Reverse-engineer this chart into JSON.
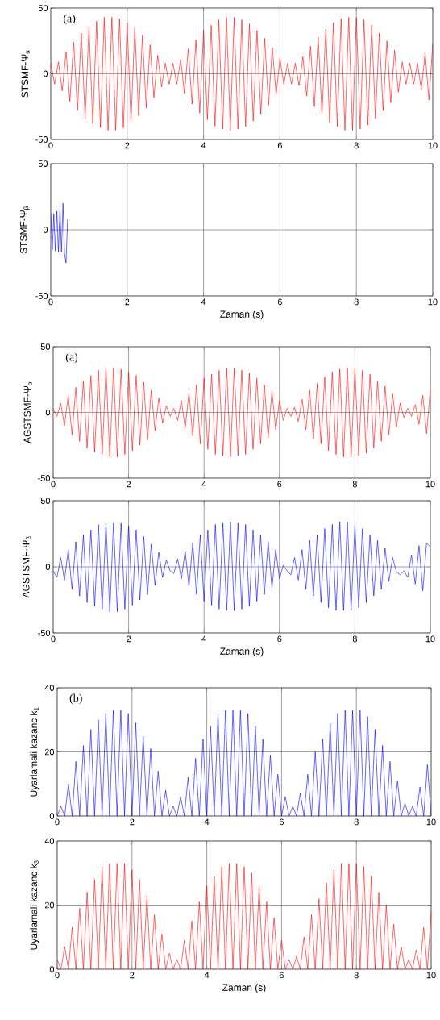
{
  "chart_data": [
    {
      "type": "line",
      "ylabel": "STSMF-Ψ$_{α}$",
      "annotations": [
        "(a)"
      ],
      "xlim": [
        0,
        10
      ],
      "ylim": [
        -50,
        50
      ],
      "xticks": [
        0,
        2,
        4,
        6,
        8,
        10
      ],
      "yticks": [
        -50,
        0,
        50
      ],
      "grid": true,
      "x": [
        0,
        0.1,
        0.2,
        0.3,
        0.4,
        0.5,
        0.6,
        0.7,
        0.8,
        0.9,
        1,
        1.1,
        1.2,
        1.3,
        1.4,
        1.5,
        1.6,
        1.7,
        1.8,
        1.9,
        2,
        2.1,
        2.2,
        2.3,
        2.4,
        2.5,
        2.6,
        2.7,
        2.8,
        2.9,
        3,
        3.1,
        3.2,
        3.3,
        3.4,
        3.5,
        3.6,
        3.7,
        3.8,
        3.9,
        4,
        4.1,
        4.2,
        4.3,
        4.4,
        4.5,
        4.6,
        4.7,
        4.8,
        4.9,
        5,
        5.1,
        5.2,
        5.3,
        5.4,
        5.5,
        5.6,
        5.7,
        5.8,
        5.9,
        6,
        6.1,
        6.2,
        6.3,
        6.4,
        6.5,
        6.6,
        6.7,
        6.8,
        6.9,
        7,
        7.1,
        7.2,
        7.3,
        7.4,
        7.5,
        7.6,
        7.7,
        7.8,
        7.9,
        8,
        8.1,
        8.2,
        8.3,
        8.4,
        8.5,
        8.6,
        8.7,
        8.8,
        8.9,
        9,
        9.1,
        9.2,
        9.3,
        9.4,
        9.5,
        9.6,
        9.7,
        9.8,
        9.9,
        10
      ],
      "series": [
        {
          "color": "#ff0000",
          "values": [
            8,
            -8,
            9,
            -13,
            17,
            -21,
            24,
            -28,
            31,
            -34,
            36,
            -38,
            40,
            -41,
            43,
            -43,
            43,
            -43,
            42,
            -41,
            39,
            -37,
            35,
            -32,
            29,
            -26,
            22,
            -18,
            14,
            -10,
            8,
            -8,
            8,
            -8,
            11,
            -15,
            19,
            -23,
            26,
            -30,
            33,
            -35,
            37,
            -40,
            41,
            -42,
            43,
            -43,
            43,
            -42,
            41,
            -40,
            38,
            -36,
            33,
            -31,
            27,
            -24,
            20,
            -16,
            12,
            -8,
            8,
            -8,
            8,
            -9,
            13,
            -17,
            21,
            -25,
            28,
            -31,
            34,
            -37,
            39,
            -40,
            42,
            -43,
            43,
            -43,
            43,
            -42,
            41,
            -39,
            37,
            -34,
            31,
            -28,
            25,
            -22,
            18,
            -14,
            9,
            -8,
            8,
            -8,
            8,
            -12,
            16,
            -20,
            23
          ]
        }
      ]
    },
    {
      "type": "line",
      "xlabel": "Zaman (s)",
      "ylabel": "STSMF-Ψ$_{β}$",
      "xlim": [
        0,
        10
      ],
      "ylim": [
        -50,
        50
      ],
      "xticks": [
        0,
        2,
        4,
        6,
        8,
        10
      ],
      "yticks": [
        -50,
        0,
        50
      ],
      "grid": true,
      "x": [
        0,
        0.04,
        0.08,
        0.12,
        0.16,
        0.2,
        0.24,
        0.28,
        0.32,
        0.36,
        0.4,
        0.44
      ],
      "series": [
        {
          "color": "#0000ff",
          "values": [
            13,
            -15,
            12,
            -16,
            14,
            -17,
            16,
            -17,
            20,
            -18,
            -25,
            8
          ]
        }
      ]
    },
    {
      "type": "line",
      "ylabel": "AGSTSMF-Ψ$_{α}$",
      "annotations": [
        "(a)"
      ],
      "xlim": [
        0,
        10
      ],
      "ylim": [
        -50,
        50
      ],
      "xticks": [
        0,
        2,
        4,
        6,
        8,
        10
      ],
      "yticks": [
        -50,
        0,
        50
      ],
      "grid": true,
      "x": [
        0,
        0.1,
        0.2,
        0.3,
        0.4,
        0.5,
        0.6,
        0.7,
        0.8,
        0.9,
        1,
        1.1,
        1.2,
        1.3,
        1.4,
        1.5,
        1.6,
        1.7,
        1.8,
        1.9,
        2,
        2.1,
        2.2,
        2.3,
        2.4,
        2.5,
        2.6,
        2.7,
        2.8,
        2.9,
        3,
        3.1,
        3.2,
        3.3,
        3.4,
        3.5,
        3.6,
        3.7,
        3.8,
        3.9,
        4,
        4.1,
        4.2,
        4.3,
        4.4,
        4.5,
        4.6,
        4.7,
        4.8,
        4.9,
        5,
        5.1,
        5.2,
        5.3,
        5.4,
        5.5,
        5.6,
        5.7,
        5.8,
        5.9,
        6,
        6.1,
        6.2,
        6.3,
        6.4,
        6.5,
        6.6,
        6.7,
        6.8,
        6.9,
        7,
        7.1,
        7.2,
        7.3,
        7.4,
        7.5,
        7.6,
        7.7,
        7.8,
        7.9,
        8,
        8.1,
        8.2,
        8.3,
        8.4,
        8.5,
        8.6,
        8.7,
        8.8,
        8.9,
        9,
        9.1,
        9.2,
        9.3,
        9.4,
        9.5,
        9.6,
        9.7,
        9.8,
        9.9,
        10
      ],
      "series": [
        {
          "color": "#ff0000",
          "values": [
            3,
            -3,
            7,
            -10,
            13,
            -17,
            19,
            -22,
            24,
            -27,
            28,
            -30,
            32,
            -32,
            34,
            -34,
            34,
            -34,
            33,
            -32,
            31,
            -29,
            28,
            -25,
            23,
            -21,
            17,
            -14,
            11,
            -8,
            5,
            -3,
            3,
            -6,
            9,
            -12,
            15,
            -18,
            21,
            -24,
            26,
            -28,
            29,
            -32,
            32,
            -33,
            34,
            -34,
            34,
            -33,
            32,
            -32,
            30,
            -28,
            26,
            -24,
            21,
            -19,
            16,
            -13,
            9,
            -6,
            3,
            -3,
            4,
            -7,
            10,
            -13,
            17,
            -20,
            22,
            -24,
            27,
            -29,
            31,
            -32,
            33,
            -34,
            34,
            -34,
            34,
            -33,
            32,
            -31,
            29,
            -27,
            24,
            -22,
            20,
            -17,
            14,
            -11,
            7,
            -4,
            3,
            -3,
            6,
            -9,
            13,
            -16,
            18
          ]
        }
      ]
    },
    {
      "type": "line",
      "xlabel": "Zaman (s)",
      "ylabel": "AGSTSMF-Ψ$_{β}$",
      "xlim": [
        0,
        10
      ],
      "ylim": [
        -50,
        50
      ],
      "xticks": [
        0,
        2,
        4,
        6,
        8,
        10
      ],
      "yticks": [
        -50,
        0,
        50
      ],
      "grid": true,
      "x": [
        0,
        0.1,
        0.2,
        0.3,
        0.4,
        0.5,
        0.6,
        0.7,
        0.8,
        0.9,
        1,
        1.1,
        1.2,
        1.3,
        1.4,
        1.5,
        1.6,
        1.7,
        1.8,
        1.9,
        2,
        2.1,
        2.2,
        2.3,
        2.4,
        2.5,
        2.6,
        2.7,
        2.8,
        2.9,
        3,
        3.1,
        3.2,
        3.3,
        3.4,
        3.5,
        3.6,
        3.7,
        3.8,
        3.9,
        4,
        4.1,
        4.2,
        4.3,
        4.4,
        4.5,
        4.6,
        4.7,
        4.8,
        4.9,
        5,
        5.1,
        5.2,
        5.3,
        5.4,
        5.5,
        5.6,
        5.7,
        5.8,
        5.9,
        6,
        6.1,
        6.2,
        6.3,
        6.4,
        6.5,
        6.6,
        6.7,
        6.8,
        6.9,
        7,
        7.1,
        7.2,
        7.3,
        7.4,
        7.5,
        7.6,
        7.7,
        7.8,
        7.9,
        8,
        8.1,
        8.2,
        8.3,
        8.4,
        8.5,
        8.6,
        8.7,
        8.8,
        8.9,
        9,
        9.1,
        9.2,
        9.3,
        9.4,
        9.5,
        9.6,
        9.7,
        9.8,
        9.9,
        10
      ],
      "series": [
        {
          "color": "#0000ff",
          "values": [
            -3,
            -8,
            7,
            -10,
            13,
            -17,
            19,
            -22,
            24,
            -27,
            28,
            -30,
            32,
            -32,
            33,
            -34,
            33,
            -34,
            33,
            -32,
            31,
            -29,
            28,
            -25,
            23,
            -21,
            17,
            -14,
            11,
            -8,
            5,
            -3,
            -5,
            6,
            -9,
            12,
            -15,
            18,
            -21,
            24,
            -26,
            28,
            -29,
            32,
            -32,
            33,
            -33,
            34,
            -33,
            33,
            -32,
            32,
            -30,
            28,
            -26,
            24,
            -21,
            19,
            -16,
            13,
            -9,
            1,
            -3,
            -6,
            7,
            -10,
            13,
            -17,
            20,
            -22,
            24,
            -27,
            29,
            -31,
            32,
            -33,
            34,
            -33,
            34,
            -33,
            32,
            -31,
            29,
            -27,
            24,
            -22,
            20,
            -17,
            14,
            -11,
            7,
            -4,
            -6,
            -3,
            -8,
            9,
            -13,
            16,
            -18,
            18,
            15
          ]
        }
      ]
    },
    {
      "type": "line",
      "ylabel": "Uyarlamali kazanc k$_{1}$",
      "annotations": [
        "(b)"
      ],
      "xlim": [
        0,
        10
      ],
      "ylim": [
        0,
        40
      ],
      "xticks": [
        0,
        2,
        4,
        6,
        8,
        10
      ],
      "yticks": [
        0,
        20,
        40
      ],
      "grid": true,
      "x": [
        0,
        0.1,
        0.2,
        0.3,
        0.4,
        0.5,
        0.6,
        0.7,
        0.8,
        0.9,
        1,
        1.1,
        1.2,
        1.3,
        1.4,
        1.5,
        1.6,
        1.7,
        1.8,
        1.9,
        2,
        2.1,
        2.2,
        2.3,
        2.4,
        2.5,
        2.6,
        2.7,
        2.8,
        2.9,
        3,
        3.1,
        3.2,
        3.3,
        3.4,
        3.5,
        3.6,
        3.7,
        3.8,
        3.9,
        4,
        4.1,
        4.2,
        4.3,
        4.4,
        4.5,
        4.6,
        4.7,
        4.8,
        4.9,
        5,
        5.1,
        5.2,
        5.3,
        5.4,
        5.5,
        5.6,
        5.7,
        5.8,
        5.9,
        6,
        6.1,
        6.2,
        6.3,
        6.4,
        6.5,
        6.6,
        6.7,
        6.8,
        6.9,
        7,
        7.1,
        7.2,
        7.3,
        7.4,
        7.5,
        7.6,
        7.7,
        7.8,
        7.9,
        8,
        8.1,
        8.2,
        8.3,
        8.4,
        8.5,
        8.6,
        8.7,
        8.8,
        8.9,
        9,
        9.1,
        9.2,
        9.3,
        9.4,
        9.5,
        9.6,
        9.7,
        9.8,
        9.9,
        10
      ],
      "series": [
        {
          "color": "#0000ff",
          "values": [
            0,
            3,
            0,
            10,
            0,
            17,
            0,
            22,
            0,
            27,
            0,
            30,
            0,
            32,
            0,
            33,
            0,
            33,
            0,
            32,
            0,
            29,
            0,
            25,
            0,
            21,
            0,
            14,
            0,
            8,
            0,
            3,
            0,
            6,
            0,
            12,
            0,
            18,
            0,
            24,
            0,
            28,
            0,
            32,
            0,
            33,
            0,
            33,
            0,
            33,
            0,
            32,
            0,
            28,
            0,
            24,
            0,
            19,
            0,
            13,
            0,
            6,
            0,
            3,
            0,
            7,
            0,
            13,
            0,
            20,
            0,
            24,
            0,
            29,
            0,
            32,
            0,
            33,
            0,
            33,
            0,
            33,
            0,
            31,
            0,
            27,
            0,
            22,
            0,
            17,
            0,
            11,
            0,
            4,
            0,
            3,
            0,
            9,
            0,
            16,
            0
          ]
        }
      ]
    },
    {
      "type": "line",
      "xlabel": "Zaman (s)",
      "ylabel": "Uyarlamali kazanc k$_{3}$",
      "xlim": [
        0,
        10
      ],
      "ylim": [
        0,
        40
      ],
      "xticks": [
        0,
        2,
        4,
        6,
        8,
        10
      ],
      "yticks": [
        0,
        20,
        40
      ],
      "grid": true,
      "x": [
        0,
        0.1,
        0.2,
        0.3,
        0.4,
        0.5,
        0.6,
        0.7,
        0.8,
        0.9,
        1,
        1.1,
        1.2,
        1.3,
        1.4,
        1.5,
        1.6,
        1.7,
        1.8,
        1.9,
        2,
        2.1,
        2.2,
        2.3,
        2.4,
        2.5,
        2.6,
        2.7,
        2.8,
        2.9,
        3,
        3.1,
        3.2,
        3.3,
        3.4,
        3.5,
        3.6,
        3.7,
        3.8,
        3.9,
        4,
        4.1,
        4.2,
        4.3,
        4.4,
        4.5,
        4.6,
        4.7,
        4.8,
        4.9,
        5,
        5.1,
        5.2,
        5.3,
        5.4,
        5.5,
        5.6,
        5.7,
        5.8,
        5.9,
        6,
        6.1,
        6.2,
        6.3,
        6.4,
        6.5,
        6.6,
        6.7,
        6.8,
        6.9,
        7,
        7.1,
        7.2,
        7.3,
        7.4,
        7.5,
        7.6,
        7.7,
        7.8,
        7.9,
        8,
        8.1,
        8.2,
        8.3,
        8.4,
        8.5,
        8.6,
        8.7,
        8.8,
        8.9,
        9,
        9.1,
        9.2,
        9.3,
        9.4,
        9.5,
        9.6,
        9.7,
        9.8,
        9.9,
        10
      ],
      "series": [
        {
          "color": "#ff0000",
          "values": [
            3,
            0,
            7,
            0,
            13,
            0,
            19,
            0,
            24,
            0,
            28,
            0,
            32,
            0,
            33,
            0,
            33,
            0,
            33,
            0,
            31,
            0,
            28,
            0,
            23,
            0,
            17,
            0,
            11,
            0,
            5,
            0,
            3,
            0,
            9,
            0,
            15,
            0,
            21,
            0,
            26,
            0,
            29,
            0,
            32,
            0,
            33,
            0,
            33,
            0,
            32,
            0,
            30,
            0,
            26,
            0,
            21,
            0,
            16,
            0,
            9,
            0,
            3,
            0,
            4,
            0,
            10,
            0,
            17,
            0,
            22,
            0,
            27,
            0,
            31,
            0,
            33,
            0,
            33,
            0,
            33,
            0,
            32,
            0,
            29,
            0,
            24,
            0,
            20,
            0,
            14,
            0,
            7,
            0,
            3,
            0,
            6,
            0,
            13,
            0,
            18
          ]
        }
      ]
    }
  ]
}
